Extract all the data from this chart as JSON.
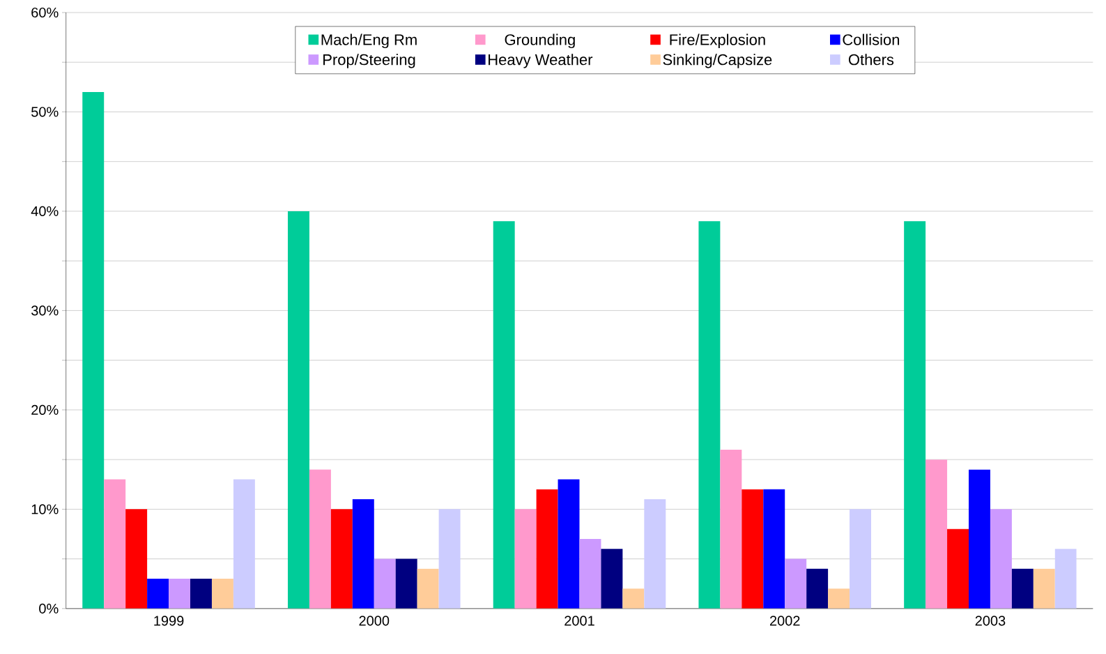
{
  "chart_data": {
    "type": "bar",
    "categories": [
      "1999",
      "2000",
      "2001",
      "2002",
      "2003"
    ],
    "series": [
      {
        "name": "Mach/Eng Rm",
        "color": "#00cc99",
        "values": [
          52,
          40,
          39,
          39,
          39
        ]
      },
      {
        "name": "Grounding",
        "color": "#ff99cc",
        "values": [
          13,
          14,
          10,
          16,
          15
        ]
      },
      {
        "name": "Fire/Explosion",
        "color": "#ff0000",
        "values": [
          10,
          10,
          12,
          12,
          8
        ]
      },
      {
        "name": "Collision",
        "color": "#0000ff",
        "values": [
          3,
          11,
          13,
          12,
          14
        ]
      },
      {
        "name": "Prop/Steering",
        "color": "#cc99ff",
        "values": [
          3,
          5,
          7,
          5,
          10
        ]
      },
      {
        "name": "Heavy Weather",
        "color": "#000080",
        "values": [
          3,
          5,
          6,
          4,
          4
        ]
      },
      {
        "name": "Sinking/Capsize",
        "color": "#ffcc99",
        "values": [
          3,
          4,
          2,
          2,
          4
        ]
      },
      {
        "name": "Others",
        "color": "#ccccff",
        "values": [
          13,
          10,
          11,
          10,
          6
        ]
      }
    ],
    "ylim": [
      0,
      60
    ],
    "yticks": [
      {
        "value": 0,
        "label": "0%"
      },
      {
        "value": 5,
        "label": null
      },
      {
        "value": 10,
        "label": "10%"
      },
      {
        "value": 15,
        "label": null
      },
      {
        "value": 20,
        "label": "20%"
      },
      {
        "value": 25,
        "label": null
      },
      {
        "value": 30,
        "label": "30%"
      },
      {
        "value": 35,
        "label": null
      },
      {
        "value": 40,
        "label": "40%"
      },
      {
        "value": 45,
        "label": null
      },
      {
        "value": 50,
        "label": "50%"
      },
      {
        "value": 55,
        "label": null
      },
      {
        "value": 60,
        "label": "60%"
      }
    ],
    "grid": "y",
    "legend": "top"
  }
}
